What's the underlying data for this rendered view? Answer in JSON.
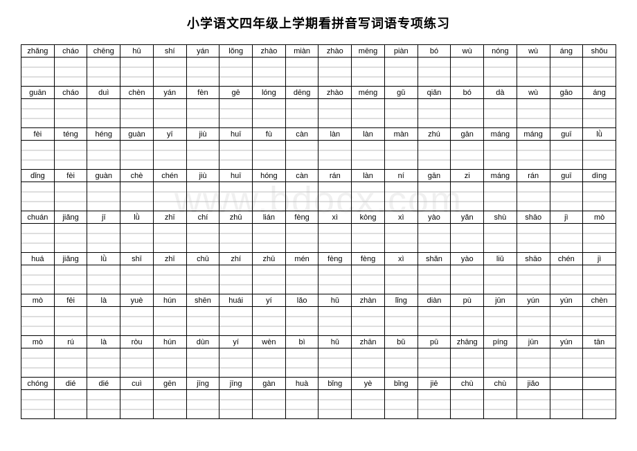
{
  "title": "小学语文四年级上学期看拼音写词语专项练习",
  "watermark": "www.bdocx.com",
  "columns": 18,
  "rows": [
    [
      "zhǎng",
      "cháo",
      "chēng",
      "hū",
      "shí",
      "yán",
      "lǒng",
      "zhào",
      "miàn",
      "zhào",
      "mēng",
      "piàn",
      "bó",
      "wù",
      "nóng",
      "wù",
      "áng",
      "shǒu"
    ],
    [
      "guān",
      "cháo",
      "duì",
      "chèn",
      "yán",
      "fèn",
      "gē",
      "lóng",
      "dēng",
      "zhào",
      "méng",
      "gǔ",
      "qiǎn",
      "bó",
      "dà",
      "wù",
      "gāo",
      "áng"
    ],
    [
      "fèi",
      "téng",
      "héng",
      "guàn",
      "yī",
      "jiù",
      "huī",
      "fù",
      "càn",
      "làn",
      "làn",
      "màn",
      "zhú",
      "gān",
      "máng",
      "máng",
      "guī",
      "lǜ"
    ],
    [
      "dǐng",
      "fèi",
      "guàn",
      "chè",
      "chén",
      "jiù",
      "huī",
      "hóng",
      "càn",
      "rán",
      "làn",
      "ní",
      "gān",
      "zi",
      "máng",
      "rán",
      "guī",
      "dìng"
    ],
    [
      "chuán",
      "jiǎng",
      "jī",
      "lǜ",
      "zhī",
      "chí",
      "zhū",
      "lián",
      "fèng",
      "xì",
      "kòng",
      "xì",
      "yào",
      "yǎn",
      "shù",
      "shāo",
      "jì",
      "mò"
    ],
    [
      "huá",
      "jiǎng",
      "lǜ",
      "shī",
      "zhī",
      "chū",
      "zhí",
      "zhū",
      "mén",
      "fèng",
      "fèng",
      "xì",
      "shǎn",
      "yào",
      "liǔ",
      "shāo",
      "chén",
      "jì"
    ],
    [
      "mò",
      "fēi",
      "là",
      "yuè",
      "hún",
      "shēn",
      "huái",
      "yí",
      "lǎo",
      "hǔ",
      "zhàn",
      "lǐng",
      "diàn",
      "pù",
      "jūn",
      "yún",
      "yún",
      "chèn"
    ],
    [
      "mò",
      "rú",
      "là",
      "ròu",
      "hún",
      "dùn",
      "yí",
      "wèn",
      "bì",
      "hǔ",
      "zhān",
      "bǔ",
      "pū",
      "zhāng",
      "píng",
      "jūn",
      "yún",
      "tān"
    ],
    [
      "chóng",
      "dié",
      "dié",
      "cuì",
      "gēn",
      "jīng",
      "jīng",
      "gàn",
      "huà",
      "bǐng",
      "yè",
      "bǐng",
      "jiē",
      "chù",
      "chù",
      "jiǎo",
      "",
      ""
    ]
  ],
  "style": {
    "title_fontsize": 18,
    "pinyin_fontsize": 11,
    "pinyin_row_height": 18,
    "box_row_height": 42,
    "border_color": "#000000",
    "guide_line_color": "#bdbdbd",
    "background_color": "#ffffff",
    "watermark_color": "rgba(0,0,0,0.06)",
    "watermark_fontsize": 54
  }
}
